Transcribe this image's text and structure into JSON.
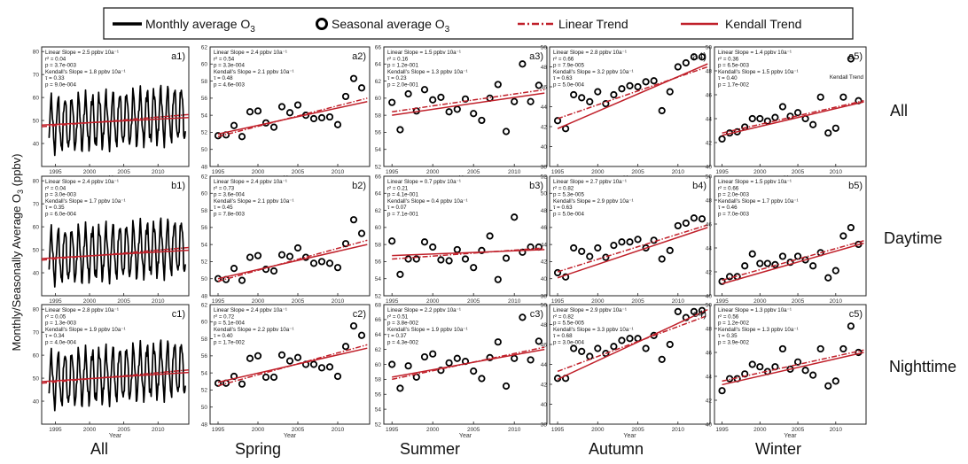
{
  "legend": {
    "items": [
      {
        "label": "Monthly average O",
        "sub": "3",
        "kind": "line-black"
      },
      {
        "label": "Seasonal average O",
        "sub": "3",
        "kind": "circle"
      },
      {
        "label": "Linear Trend",
        "sub": "",
        "kind": "dash-red"
      },
      {
        "label": "Kendall Trend",
        "sub": "",
        "kind": "solid-red"
      }
    ]
  },
  "ylabel": {
    "main": "Monthly/Seasonally Average O",
    "sub": "3",
    "tail": " (ppbv)"
  },
  "xlabel": "Year",
  "column_labels": [
    "All",
    "Spring",
    "Summer",
    "Autumn",
    "Winter"
  ],
  "row_labels": [
    "All",
    "Daytime",
    "Nighttime"
  ],
  "colors": {
    "linear": "#c0202a",
    "kendall": "#c0202a",
    "monthly": "#000000",
    "frame": "#222222"
  },
  "chart_data": [
    {
      "id": "a1",
      "type": "line",
      "panel_label": "a1)",
      "ylim": [
        30,
        82
      ],
      "yticks": [
        40,
        50,
        60,
        70,
        80
      ],
      "xlim": [
        1993,
        2014.5
      ],
      "xticks": [
        1995,
        2000,
        2005,
        2010
      ],
      "stats": [
        "Linear Slope = 2.5 ppbv 10a⁻¹",
        "r² = 0.04",
        "p = 3.7e-003",
        "Kendall's Slope = 1.8 ppbv 10a⁻¹",
        "τ = 0.33",
        "p = 9.0e-004"
      ],
      "monthly": {
        "start": 1994.0,
        "end": 2014.0,
        "base": 48,
        "amp": 11,
        "trend": 0.25
      },
      "linear": [
        [
          1993,
          47.3
        ],
        [
          2014.5,
          52.6
        ]
      ],
      "kendall": [
        [
          1993,
          48.0
        ],
        [
          2014.5,
          51.3
        ]
      ]
    },
    {
      "id": "a2",
      "type": "scatter",
      "panel_label": "a2)",
      "ylim": [
        48,
        62
      ],
      "yticks": [
        48,
        50,
        52,
        54,
        56,
        58,
        60,
        62
      ],
      "xlim": [
        1994,
        2014
      ],
      "stats": [
        "Linear Slope = 2.4 ppbv 10a⁻¹",
        "r² = 0.54",
        "p = 3.3e-004",
        "Kendall's Slope = 2.1 ppbv 10a⁻¹",
        "τ = 0.48",
        "p = 4.6e-003"
      ],
      "x": [
        1995,
        1996,
        1997,
        1998,
        1999,
        2000,
        2001,
        2002,
        2003,
        2004,
        2005,
        2006,
        2007,
        2008,
        2009,
        2010,
        2011,
        2012,
        2013
      ],
      "y": [
        51.6,
        51.7,
        52.8,
        51.5,
        54.4,
        54.5,
        53.1,
        52.6,
        55.0,
        54.3,
        55.2,
        54.0,
        53.6,
        53.7,
        53.8,
        52.9,
        56.2,
        58.3,
        57.2
      ],
      "linear": [
        [
          1995,
          51.5
        ],
        [
          2013.7,
          56.0
        ]
      ],
      "kendall": [
        [
          1995,
          51.8
        ],
        [
          2013.7,
          55.6
        ]
      ]
    },
    {
      "id": "a3",
      "type": "scatter",
      "panel_label": "a3)",
      "ylim": [
        52,
        66
      ],
      "yticks": [
        52,
        54,
        56,
        58,
        60,
        62,
        64,
        66
      ],
      "xlim": [
        1994,
        2014
      ],
      "stats": [
        "Linear Slope = 1.5 ppbv 10a⁻¹",
        "r² = 0.16",
        "p = 1.2e-001",
        "Kendall's Slope = 1.3 ppbv 10a⁻¹",
        "τ = 0.23",
        "p = 2.0e-001"
      ],
      "x": [
        1995,
        1996,
        1997,
        1998,
        1999,
        2000,
        2001,
        2002,
        2003,
        2004,
        2005,
        2006,
        2007,
        2008,
        2009,
        2010,
        2011,
        2012,
        2013
      ],
      "y": [
        59.5,
        56.3,
        60.5,
        58.5,
        61.0,
        59.8,
        60.1,
        58.4,
        58.7,
        59.9,
        58.2,
        57.4,
        60.0,
        61.6,
        56.1,
        59.6,
        64.0,
        59.6,
        61.5
      ],
      "linear": [
        [
          1995,
          58.4
        ],
        [
          2013.7,
          61.0
        ]
      ],
      "kendall": [
        [
          1995,
          58.0
        ],
        [
          2013.7,
          60.6
        ]
      ]
    },
    {
      "id": "a4",
      "type": "scatter",
      "panel_label": "a4)",
      "ylim": [
        38,
        50
      ],
      "yticks": [
        38,
        40,
        42,
        44,
        46,
        48,
        50
      ],
      "xlim": [
        1994,
        2014
      ],
      "stats": [
        "Linear Slope = 2.8 ppbv 10a⁻¹",
        "r² = 0.66",
        "p = 7.9e-005",
        "Kendall's Slope = 3.2 ppbv 10a⁻¹",
        "τ = 0.63",
        "p = 5.0e-004"
      ],
      "x": [
        1995,
        1996,
        1997,
        1998,
        1999,
        2000,
        2001,
        2002,
        2003,
        2004,
        2005,
        2006,
        2007,
        2008,
        2009,
        2010,
        2011,
        2012,
        2013
      ],
      "y": [
        42.6,
        41.8,
        45.2,
        44.9,
        44.5,
        45.5,
        44.3,
        45.2,
        45.8,
        46.1,
        46.0,
        46.5,
        46.6,
        43.6,
        45.5,
        48.0,
        48.4,
        49.0,
        49.0
      ],
      "linear": [
        [
          1995,
          42.8
        ],
        [
          2013.7,
          48.0
        ]
      ],
      "kendall": [
        [
          1995,
          41.8
        ],
        [
          2013.7,
          48.3
        ]
      ]
    },
    {
      "id": "a5",
      "type": "scatter",
      "panel_label": "a5)",
      "ylim": [
        40,
        50
      ],
      "yticks": [
        40,
        42,
        44,
        46,
        48,
        50
      ],
      "xlim": [
        1994,
        2014
      ],
      "stats": [
        "Linear Slope = 1.4 ppbv 10a⁻¹",
        "r² = 0.36",
        "p = 6.5e-003",
        "Kendall's Slope = 1.5 ppbv 10a⁻¹",
        "τ = 0.40",
        "p = 1.7e-002"
      ],
      "annotation": "Kendall Trend",
      "x": [
        1995,
        1996,
        1997,
        1998,
        1999,
        2000,
        2001,
        2002,
        2003,
        2004,
        2005,
        2006,
        2007,
        2008,
        2009,
        2010,
        2011,
        2012,
        2013
      ],
      "y": [
        42.3,
        42.8,
        42.9,
        43.3,
        44.0,
        44.0,
        43.8,
        44.1,
        45.0,
        44.2,
        44.5,
        44.0,
        43.5,
        45.8,
        42.8,
        43.2,
        45.8,
        49.0,
        45.5
      ],
      "linear": [
        [
          1995,
          42.8
        ],
        [
          2013.7,
          45.5
        ]
      ],
      "kendall": [
        [
          1995,
          42.6
        ],
        [
          2013.7,
          45.4
        ]
      ]
    },
    {
      "id": "b1",
      "type": "line",
      "panel_label": "b1)",
      "ylim": [
        30,
        82
      ],
      "yticks": [
        40,
        50,
        60,
        70,
        80
      ],
      "xlim": [
        1993,
        2014.5
      ],
      "xticks": [
        1995,
        2000,
        2005,
        2010
      ],
      "stats": [
        "Linear Slope = 2.4 ppbv 10a⁻¹",
        "r² = 0.04",
        "p = 3.0e-003",
        "Kendall's Slope = 1.7 ppbv 10a⁻¹",
        "τ = 0.35",
        "p = 6.0e-004"
      ],
      "monthly": {
        "start": 1994.0,
        "end": 2014.0,
        "base": 47,
        "amp": 11,
        "trend": 0.22
      },
      "linear": [
        [
          1993,
          45.5
        ],
        [
          2014.5,
          51.0
        ]
      ],
      "kendall": [
        [
          1993,
          46.2
        ],
        [
          2014.5,
          49.8
        ]
      ]
    },
    {
      "id": "b2",
      "type": "scatter",
      "panel_label": "b2)",
      "ylim": [
        48,
        62
      ],
      "yticks": [
        48,
        50,
        52,
        54,
        56,
        58,
        60,
        62
      ],
      "xlim": [
        1994,
        2014
      ],
      "stats": [
        "Linear Slope = 2.4 ppbv 10a⁻¹",
        "r² = 0.73",
        "p = 3.6e-004",
        "Kendall's Slope = 2.1 ppbv 10a⁻¹",
        "τ = 0.45",
        "p = 7.8e-003"
      ],
      "x": [
        1995,
        1996,
        1997,
        1998,
        1999,
        2000,
        2001,
        2002,
        2003,
        2004,
        2005,
        2006,
        2007,
        2008,
        2009,
        2010,
        2011,
        2012,
        2013
      ],
      "y": [
        50.0,
        49.9,
        51.2,
        49.8,
        52.5,
        52.7,
        51.1,
        50.9,
        52.8,
        52.6,
        53.6,
        52.5,
        51.8,
        52.0,
        51.8,
        51.3,
        54.1,
        56.9,
        55.3
      ],
      "linear": [
        [
          1995,
          49.7
        ],
        [
          2013.7,
          54.5
        ]
      ],
      "kendall": [
        [
          1995,
          50.0
        ],
        [
          2013.7,
          54.0
        ]
      ]
    },
    {
      "id": "b3",
      "type": "scatter",
      "panel_label": "b3)",
      "ylim": [
        52,
        66
      ],
      "yticks": [
        52,
        54,
        56,
        58,
        60,
        62,
        64,
        66
      ],
      "xlim": [
        1994,
        2014
      ],
      "stats": [
        "Linear Slope = 0.7 ppbv 10a⁻¹",
        "r² = 0.21",
        "p = 4.1e-001",
        "Kendall's Slope = 0.4 ppbv 10a⁻¹",
        "τ = 0.07",
        "p = 7.1e-001"
      ],
      "x": [
        1995,
        1996,
        1997,
        1998,
        1999,
        2000,
        2001,
        2002,
        2003,
        2004,
        2005,
        2006,
        2007,
        2008,
        2009,
        2010,
        2011,
        2012,
        2013
      ],
      "y": [
        58.4,
        54.5,
        56.3,
        56.3,
        58.3,
        57.7,
        56.2,
        56.1,
        57.4,
        56.3,
        55.3,
        57.3,
        59.0,
        53.9,
        56.4,
        61.2,
        57.1,
        57.7,
        57.7
      ],
      "linear": [
        [
          1995,
          56.3
        ],
        [
          2013.7,
          57.6
        ]
      ],
      "kendall": [
        [
          1995,
          56.7
        ],
        [
          2013.7,
          57.4
        ]
      ]
    },
    {
      "id": "b4",
      "type": "scatter",
      "panel_label": "b4)",
      "ylim": [
        38,
        52
      ],
      "yticks": [
        38,
        40,
        42,
        44,
        46,
        48,
        50,
        52
      ],
      "xlim": [
        1994,
        2014
      ],
      "stats": [
        "Linear Slope = 2.7 ppbv 10a⁻¹",
        "r² = 0.82",
        "p = 5.3e-005",
        "Kendall's Slope = 2.9 ppbv 10a⁻¹",
        "τ = 0.63",
        "p = 5.0e-004"
      ],
      "x": [
        1995,
        1996,
        1997,
        1998,
        1999,
        2000,
        2001,
        2002,
        2003,
        2004,
        2005,
        2006,
        2007,
        2008,
        2009,
        2010,
        2011,
        2012,
        2013
      ],
      "y": [
        40.7,
        40.2,
        43.6,
        43.2,
        42.6,
        43.6,
        42.5,
        43.9,
        44.3,
        44.3,
        44.6,
        43.6,
        44.5,
        42.3,
        43.3,
        46.2,
        46.5,
        47.1,
        47.0
      ],
      "linear": [
        [
          1995,
          40.8
        ],
        [
          2013.7,
          46.3
        ]
      ],
      "kendall": [
        [
          1995,
          40.1
        ],
        [
          2013.7,
          46.0
        ]
      ]
    },
    {
      "id": "b5",
      "type": "scatter",
      "panel_label": "b5)",
      "ylim": [
        40,
        50
      ],
      "yticks": [
        40,
        42,
        44,
        46,
        48,
        50
      ],
      "xlim": [
        1994,
        2014
      ],
      "stats": [
        "Linear Slope = 1.5 ppbv 10a⁻¹",
        "r² = 0.66",
        "p = 2.0e-003",
        "Kendall's Slope = 1.7 ppbv 10a⁻¹",
        "τ = 0.46",
        "p = 7.0e-003"
      ],
      "x": [
        1995,
        1996,
        1997,
        1998,
        1999,
        2000,
        2001,
        2002,
        2003,
        2004,
        2005,
        2006,
        2007,
        2008,
        2009,
        2010,
        2011,
        2012,
        2013
      ],
      "y": [
        41.2,
        41.6,
        41.6,
        42.5,
        43.5,
        42.7,
        42.7,
        42.6,
        43.3,
        42.8,
        43.3,
        43.0,
        42.5,
        43.6,
        41.5,
        42.1,
        45.0,
        45.7,
        44.3
      ],
      "linear": [
        [
          1995,
          41.3
        ],
        [
          2013.7,
          44.6
        ]
      ],
      "kendall": [
        [
          1995,
          41.0
        ],
        [
          2013.7,
          44.4
        ]
      ]
    },
    {
      "id": "c1",
      "type": "line",
      "panel_label": "c1)",
      "ylim": [
        30,
        82
      ],
      "yticks": [
        40,
        50,
        60,
        70,
        80
      ],
      "xlim": [
        1993,
        2014.5
      ],
      "xticks": [
        1995,
        2000,
        2005,
        2010
      ],
      "stats": [
        "Linear Slope = 2.8 ppbv 10a⁻¹",
        "r² = 0.05",
        "p = 1.3e-003",
        "Kendall's Slope = 1.9 ppbv 10a⁻¹",
        "τ = 0.34",
        "p = 4.0e-004"
      ],
      "monthly": {
        "start": 1994.0,
        "end": 2014.0,
        "base": 49,
        "amp": 11,
        "trend": 0.27
      },
      "linear": [
        [
          1993,
          47.8
        ],
        [
          2014.5,
          53.6
        ]
      ],
      "kendall": [
        [
          1993,
          48.5
        ],
        [
          2014.5,
          52.5
        ]
      ]
    },
    {
      "id": "c2",
      "type": "scatter",
      "panel_label": "c2)",
      "ylim": [
        48,
        62
      ],
      "yticks": [
        48,
        50,
        52,
        54,
        56,
        58,
        60,
        62
      ],
      "xlim": [
        1994,
        2014
      ],
      "stats": [
        "Linear Slope = 2.4 ppbv 10a⁻¹",
        "r² = 0.72",
        "p = 5.1e-004",
        "Kendall's Slope = 2.2 ppbv 10a⁻¹",
        "τ = 0.40",
        "p = 1.7e-002"
      ],
      "x": [
        1995,
        1996,
        1997,
        1998,
        1999,
        2000,
        2001,
        2002,
        2003,
        2004,
        2005,
        2006,
        2007,
        2008,
        2009,
        2010,
        2011,
        2012,
        2013
      ],
      "y": [
        52.8,
        52.8,
        53.6,
        52.7,
        55.7,
        56.0,
        53.5,
        53.5,
        56.1,
        55.4,
        55.8,
        55.0,
        55.0,
        54.6,
        54.7,
        53.6,
        57.1,
        59.5,
        58.4
      ],
      "linear": [
        [
          1995,
          52.5
        ],
        [
          2013.7,
          57.3
        ]
      ],
      "kendall": [
        [
          1995,
          52.9
        ],
        [
          2013.7,
          56.9
        ]
      ]
    },
    {
      "id": "c3",
      "type": "scatter",
      "panel_label": "c3)",
      "ylim": [
        52,
        68
      ],
      "yticks": [
        52,
        54,
        56,
        58,
        60,
        62,
        64,
        66,
        68
      ],
      "xlim": [
        1994,
        2014
      ],
      "stats": [
        "Linear Slope = 2.2 ppbv 10a⁻¹",
        "r² = 0.51",
        "p = 3.8e-002",
        "Kendall's Slope = 1.9 ppbv 10a⁻¹",
        "τ = 0.37",
        "p = 4.3e-002"
      ],
      "x": [
        1995,
        1996,
        1997,
        1998,
        1999,
        2000,
        2001,
        2002,
        2003,
        2004,
        2005,
        2006,
        2007,
        2008,
        2009,
        2010,
        2011,
        2012,
        2013
      ],
      "y": [
        60.0,
        56.8,
        59.8,
        58.3,
        61.0,
        61.4,
        59.2,
        60.2,
        60.8,
        60.4,
        59.1,
        58.1,
        60.9,
        63.0,
        57.1,
        60.8,
        66.3,
        60.6,
        63.1
      ],
      "linear": [
        [
          1995,
          58.0
        ],
        [
          2013.7,
          62.3
        ]
      ],
      "kendall": [
        [
          1995,
          58.3
        ],
        [
          2013.7,
          62.0
        ]
      ]
    },
    {
      "id": "c4",
      "type": "scatter",
      "panel_label": "c4)",
      "ylim": [
        38,
        50
      ],
      "yticks": [
        38,
        40,
        42,
        44,
        46,
        48,
        50
      ],
      "xlim": [
        1994,
        2014
      ],
      "stats": [
        "Linear Slope = 2.9 ppbv 10a⁻¹",
        "r² = 0.82",
        "p = 5.5e-005",
        "Kendall's Slope = 3.3 ppbv 10a⁻¹",
        "τ = 0.68",
        "p = 3.0e-004"
      ],
      "x": [
        1995,
        1996,
        1997,
        1998,
        1999,
        2000,
        2001,
        2002,
        2003,
        2004,
        2005,
        2006,
        2007,
        2008,
        2009,
        2010,
        2011,
        2012,
        2013
      ],
      "y": [
        42.6,
        42.6,
        45.6,
        45.3,
        44.8,
        45.6,
        45.1,
        45.8,
        46.4,
        46.6,
        46.6,
        45.6,
        46.9,
        44.5,
        46.0,
        49.3,
        48.7,
        49.3,
        49.4
      ],
      "linear": [
        [
          1995,
          43.3
        ],
        [
          2013.7,
          48.9
        ]
      ],
      "kendall": [
        [
          1995,
          42.5
        ],
        [
          2013.7,
          49.5
        ]
      ]
    },
    {
      "id": "c5",
      "type": "scatter",
      "panel_label": "c5)",
      "ylim": [
        40,
        50
      ],
      "yticks": [
        40,
        42,
        44,
        46,
        48,
        50
      ],
      "xlim": [
        1994,
        2014
      ],
      "stats": [
        "Linear Slope = 1.3 ppbv 10a⁻¹",
        "r² = 0.56",
        "p = 1.2e-002",
        "Kendall's Slope = 1.3 ppbv 10a⁻¹",
        "τ = 0.35",
        "p = 3.9e-002"
      ],
      "x": [
        1995,
        1996,
        1997,
        1998,
        1999,
        2000,
        2001,
        2002,
        2003,
        2004,
        2005,
        2006,
        2007,
        2008,
        2009,
        2010,
        2011,
        2012,
        2013
      ],
      "y": [
        42.8,
        43.8,
        43.8,
        44.2,
        45.0,
        44.8,
        44.4,
        44.8,
        46.3,
        44.6,
        45.2,
        44.5,
        44.1,
        46.3,
        43.2,
        43.6,
        46.3,
        48.2,
        46.0
      ],
      "linear": [
        [
          1995,
          43.6
        ],
        [
          2013.7,
          46.2
        ]
      ],
      "kendall": [
        [
          1995,
          43.3
        ],
        [
          2013.7,
          46.0
        ]
      ]
    }
  ]
}
